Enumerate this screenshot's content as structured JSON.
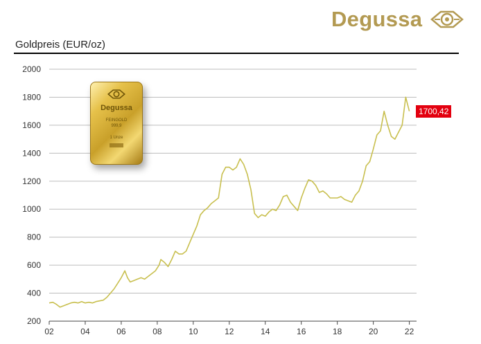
{
  "brand": {
    "name": "Degussa"
  },
  "gold_bar": {
    "brand": "Degussa",
    "line1": "FEINGOLD",
    "line2": "999,9",
    "weight": "1 Unze"
  },
  "badge": {
    "value": "1700,42",
    "color": "#e3000f"
  },
  "colors": {
    "brand": "#b39a52",
    "line": "#c8bf4e",
    "grid": "#bdbdbd"
  },
  "chart_data": {
    "type": "line",
    "title": "Goldpreis (EUR/oz)",
    "xlabel": "",
    "ylabel": "",
    "xlim": [
      2002,
      2022.4
    ],
    "ylim": [
      200,
      2000
    ],
    "grid": true,
    "x_ticks": [
      "02",
      "04",
      "06",
      "08",
      "10",
      "12",
      "14",
      "16",
      "18",
      "20",
      "22"
    ],
    "y_ticks": [
      "200",
      "400",
      "600",
      "800",
      "1000",
      "1200",
      "1400",
      "1600",
      "1800",
      "2000"
    ],
    "series": [
      {
        "name": "",
        "x": [
          2002.0,
          2002.2,
          2002.4,
          2002.6,
          2002.8,
          2003.0,
          2003.2,
          2003.4,
          2003.6,
          2003.8,
          2004.0,
          2004.2,
          2004.4,
          2004.6,
          2004.8,
          2005.0,
          2005.2,
          2005.4,
          2005.6,
          2005.8,
          2006.0,
          2006.2,
          2006.35,
          2006.5,
          2006.7,
          2006.9,
          2007.1,
          2007.3,
          2007.5,
          2007.7,
          2007.9,
          2008.1,
          2008.2,
          2008.4,
          2008.6,
          2008.8,
          2009.0,
          2009.2,
          2009.4,
          2009.6,
          2009.8,
          2010.0,
          2010.2,
          2010.4,
          2010.6,
          2010.8,
          2011.0,
          2011.2,
          2011.4,
          2011.6,
          2011.8,
          2012.0,
          2012.2,
          2012.4,
          2012.6,
          2012.8,
          2013.0,
          2013.2,
          2013.4,
          2013.6,
          2013.8,
          2014.0,
          2014.2,
          2014.4,
          2014.6,
          2014.8,
          2015.0,
          2015.2,
          2015.4,
          2015.6,
          2015.8,
          2016.0,
          2016.2,
          2016.4,
          2016.6,
          2016.8,
          2017.0,
          2017.2,
          2017.4,
          2017.6,
          2017.8,
          2018.0,
          2018.2,
          2018.4,
          2018.6,
          2018.8,
          2019.0,
          2019.2,
          2019.4,
          2019.6,
          2019.8,
          2020.0,
          2020.2,
          2020.4,
          2020.6,
          2020.8,
          2021.0,
          2021.2,
          2021.4,
          2021.6,
          2021.8,
          2022.0
        ],
        "values": [
          330,
          335,
          320,
          300,
          310,
          320,
          330,
          335,
          330,
          340,
          330,
          335,
          330,
          340,
          345,
          350,
          370,
          400,
          430,
          470,
          510,
          560,
          510,
          480,
          490,
          500,
          510,
          500,
          520,
          540,
          560,
          600,
          640,
          620,
          590,
          640,
          700,
          680,
          680,
          700,
          760,
          820,
          880,
          960,
          990,
          1010,
          1040,
          1060,
          1080,
          1250,
          1300,
          1300,
          1280,
          1300,
          1360,
          1320,
          1250,
          1140,
          970,
          940,
          960,
          950,
          980,
          1000,
          990,
          1030,
          1090,
          1100,
          1050,
          1020,
          990,
          1080,
          1150,
          1210,
          1200,
          1170,
          1120,
          1130,
          1110,
          1080,
          1080,
          1080,
          1090,
          1070,
          1060,
          1050,
          1100,
          1130,
          1200,
          1310,
          1340,
          1430,
          1530,
          1560,
          1700,
          1600,
          1520,
          1500,
          1550,
          1600,
          1800,
          1700
        ]
      }
    ]
  }
}
